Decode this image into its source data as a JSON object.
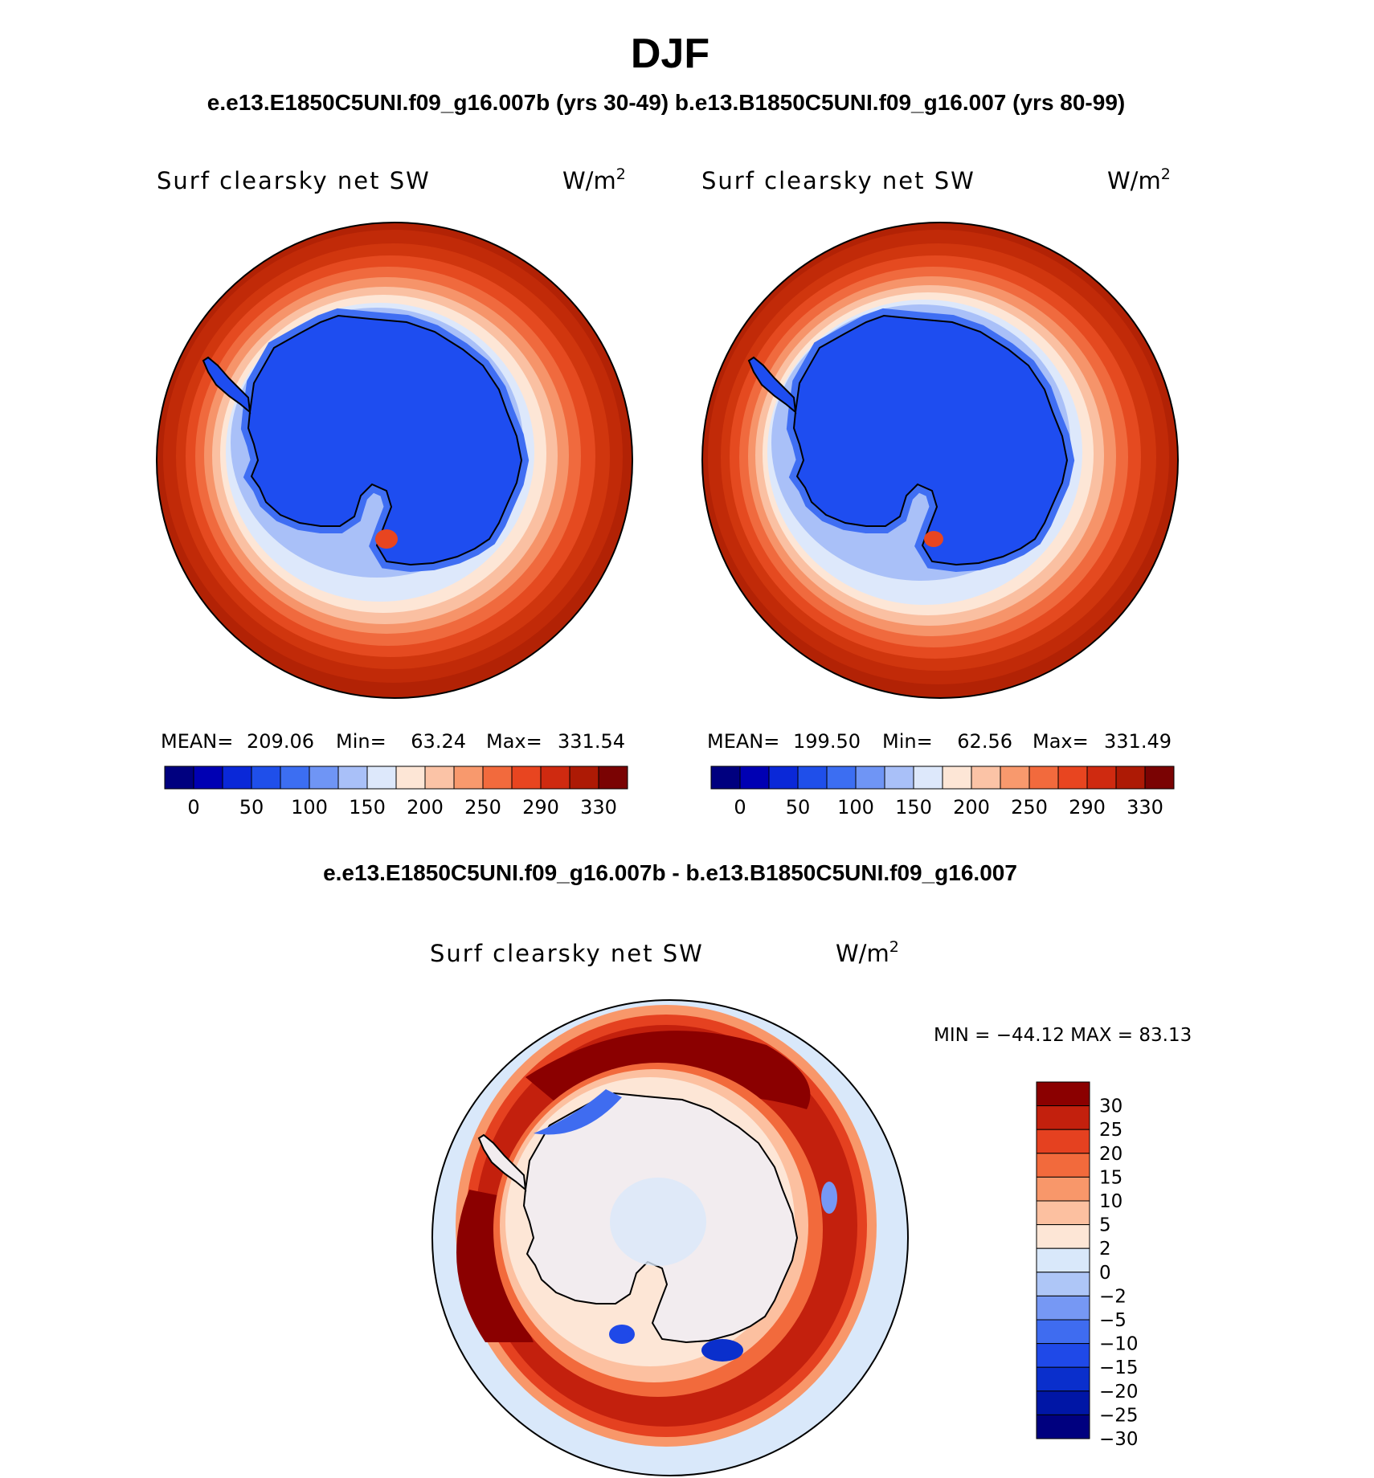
{
  "page_title": "DJF",
  "header_runs": "e.e13.E1850C5UNI.f09_g16.007b (yrs 30-49)  b.e13.B1850C5UNI.f09_g16.007 (yrs 80-99)",
  "diff_title": "e.e13.E1850C5UNI.f09_g16.007b - b.e13.B1850C5UNI.f09_g16.007",
  "colors": {
    "abs_palette": [
      "#00007f",
      "#0000b3",
      "#0a28d8",
      "#1f4fea",
      "#3c6ef2",
      "#6f95f5",
      "#a9c0f8",
      "#dde8fb",
      "#fde6d6",
      "#fbc3a6",
      "#f8996d",
      "#f26a3d",
      "#e84520",
      "#cf2a10",
      "#ad1a05",
      "#7a0303"
    ],
    "diff_palette": [
      "#00007f",
      "#0016a6",
      "#0a2fcc",
      "#1f49e8",
      "#3f6cf0",
      "#7698f4",
      "#aec6f7",
      "#d9e8fa",
      "#fde6d6",
      "#fcc0a0",
      "#f8976a",
      "#f26a3c",
      "#e54120",
      "#c3200d",
      "#8b0000"
    ],
    "continent_interior": "#1e4df0",
    "coast_halo": "#3f6ef3",
    "ocean_outer": "#b22205"
  },
  "chart_data": [
    {
      "type": "heatmap",
      "projection": "south polar stereographic",
      "title": "Surf clearsky net SW",
      "units_base": "W/m",
      "units_sup": "2",
      "stats": {
        "mean_label": "MEAN=",
        "mean": "209.06",
        "min_label": "Min=",
        "min": "63.24",
        "max_label": "Max=",
        "max": "331.54"
      },
      "colorbar_ticks": [
        "0",
        "50",
        "100",
        "150",
        "200",
        "250",
        "290",
        "330"
      ],
      "run": "e.e13.E1850C5UNI.f09_g16.007b"
    },
    {
      "type": "heatmap",
      "projection": "south polar stereographic",
      "title": "Surf clearsky net SW",
      "units_base": "W/m",
      "units_sup": "2",
      "stats": {
        "mean_label": "MEAN=",
        "mean": "199.50",
        "min_label": "Min=",
        "min": "62.56",
        "max_label": "Max=",
        "max": "331.49"
      },
      "colorbar_ticks": [
        "0",
        "50",
        "100",
        "150",
        "200",
        "250",
        "290",
        "330"
      ],
      "run": "b.e13.B1850C5UNI.f09_g16.007"
    },
    {
      "type": "heatmap",
      "projection": "south polar stereographic",
      "title": "Surf clearsky net SW",
      "units_base": "W/m",
      "units_sup": "2",
      "stats_line": "MIN = −44.12 MAX =  83.13",
      "colorbar_ticks": [
        "30",
        "25",
        "20",
        "15",
        "10",
        "5",
        "2",
        "0",
        "−2",
        "−5",
        "−10",
        "−15",
        "−20",
        "−25",
        "−30"
      ]
    }
  ]
}
